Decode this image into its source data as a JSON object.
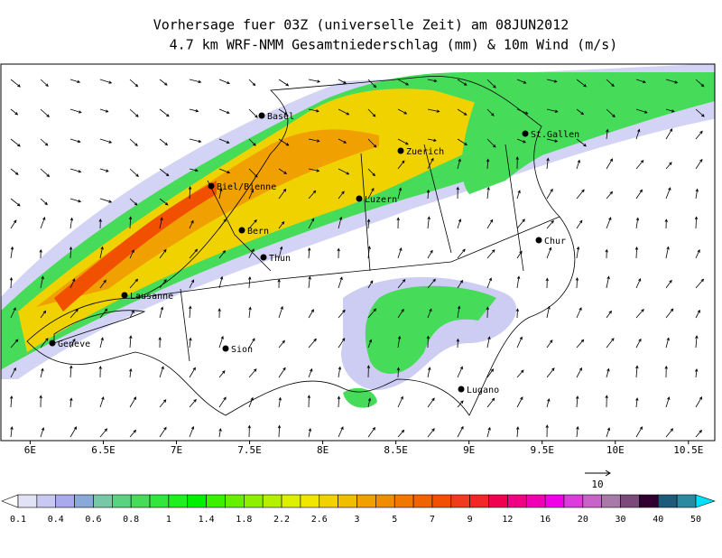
{
  "map": {
    "title": "Vorhersage fuer 03Z (universelle Zeit) am 08JUN2012",
    "subtitle": "4.7 km WRF-NMM Gesamtniederschlag (mm) & 10m Wind (m/s)",
    "xlim": [
      5.8,
      10.68
    ],
    "xticks": [
      {
        "value": 6,
        "label": "6E"
      },
      {
        "value": 6.5,
        "label": "6.5E"
      },
      {
        "value": 7,
        "label": "7E"
      },
      {
        "value": 7.5,
        "label": "7.5E"
      },
      {
        "value": 8,
        "label": "8E"
      },
      {
        "value": 8.5,
        "label": "8.5E"
      },
      {
        "value": 9,
        "label": "9E"
      },
      {
        "value": 9.5,
        "label": "9.5E"
      },
      {
        "value": 10,
        "label": "10E"
      },
      {
        "value": 10.5,
        "label": "10.5E"
      }
    ],
    "cities": [
      "Basel",
      "Zuerich",
      "St.Gallen",
      "Biel/Bienne",
      "Luzern",
      "Bern",
      "Thun",
      "Chur",
      "Lausanne",
      "Geneve",
      "Sion",
      "Lugano"
    ],
    "wind_reference": "10",
    "colorbar": {
      "labels": [
        "0.1",
        "0.4",
        "0.6",
        "0.8",
        "1",
        "1.4",
        "1.8",
        "2.2",
        "2.6",
        "3",
        "5",
        "7",
        "9",
        "12",
        "16",
        "20",
        "30",
        "40",
        "50"
      ],
      "below_color": "#ffffff",
      "above_color": "#00e0ff",
      "colors": [
        "#e2e2f6",
        "#c8c8f2",
        "#a9a9ee",
        "#8aa8d8",
        "#78c8a8",
        "#5ad282",
        "#46dc5a",
        "#32e63c",
        "#1ef01e",
        "#00f000",
        "#3cf000",
        "#64f000",
        "#8cf000",
        "#b4f000",
        "#dcf000",
        "#f0e600",
        "#f0d200",
        "#f0be00",
        "#f0a000",
        "#f08c00",
        "#f07800",
        "#f06400",
        "#f05000",
        "#f03c1e",
        "#f02828",
        "#f00050",
        "#f00082",
        "#f000b4",
        "#f000e6",
        "#dc3cdc",
        "#c864c8",
        "#a87aa8",
        "#7a4a7a",
        "#300030",
        "#1e5a7a",
        "#2a8aa0"
      ]
    }
  }
}
